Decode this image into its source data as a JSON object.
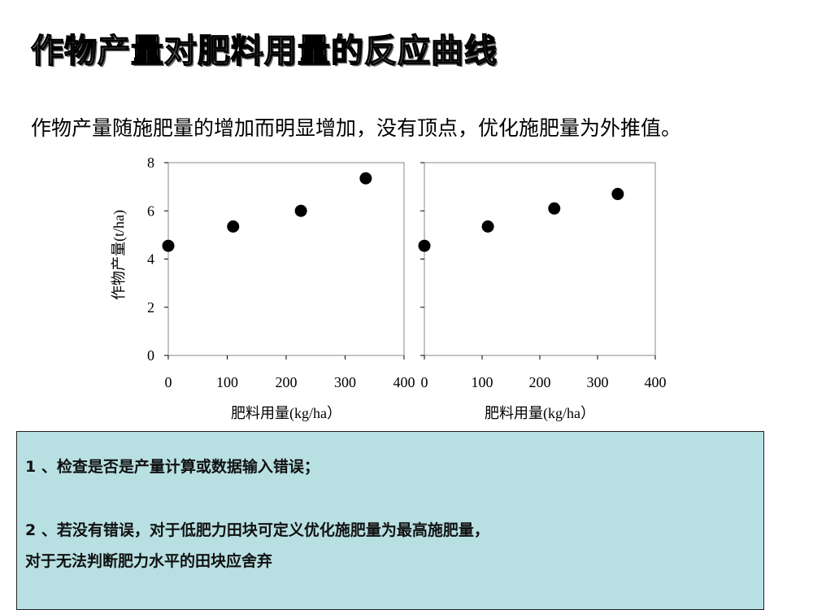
{
  "slide": {
    "title": "作物产量对肥料用量的反应曲线",
    "subtitle": "作物产量随施肥量的增加而明显增加，没有顶点，优化施肥量为外推值。"
  },
  "chart_data": [
    {
      "type": "scatter",
      "xlabel": "肥料用量(kg/ha）",
      "ylabel": "作物产量(t/ha)",
      "xlim": [
        0,
        400
      ],
      "ylim": [
        0,
        8
      ],
      "x_ticks": [
        "0",
        "100",
        "200",
        "300",
        "400"
      ],
      "y_ticks": [
        "0",
        "2",
        "4",
        "6",
        "8"
      ],
      "x": [
        0,
        110,
        225,
        335
      ],
      "y": [
        4.55,
        5.35,
        6.0,
        7.35
      ]
    },
    {
      "type": "scatter",
      "xlabel": "肥料用量(kg/ha）",
      "ylabel": "",
      "xlim": [
        0,
        400
      ],
      "ylim": [
        0,
        8
      ],
      "x_ticks": [
        "0",
        "100",
        "200",
        "300",
        "400"
      ],
      "y_ticks": [],
      "x": [
        0,
        110,
        225,
        335
      ],
      "y": [
        4.55,
        5.35,
        6.1,
        6.7
      ]
    }
  ],
  "notes": {
    "line1": "1 、检查是否是产量计算或数据输入错误；",
    "line2": "2 、若没有错误，对于低肥力田块可定义优化施肥量为最高施肥量，",
    "line3": "对于无法判断肥力水平的田块应舍弃"
  }
}
